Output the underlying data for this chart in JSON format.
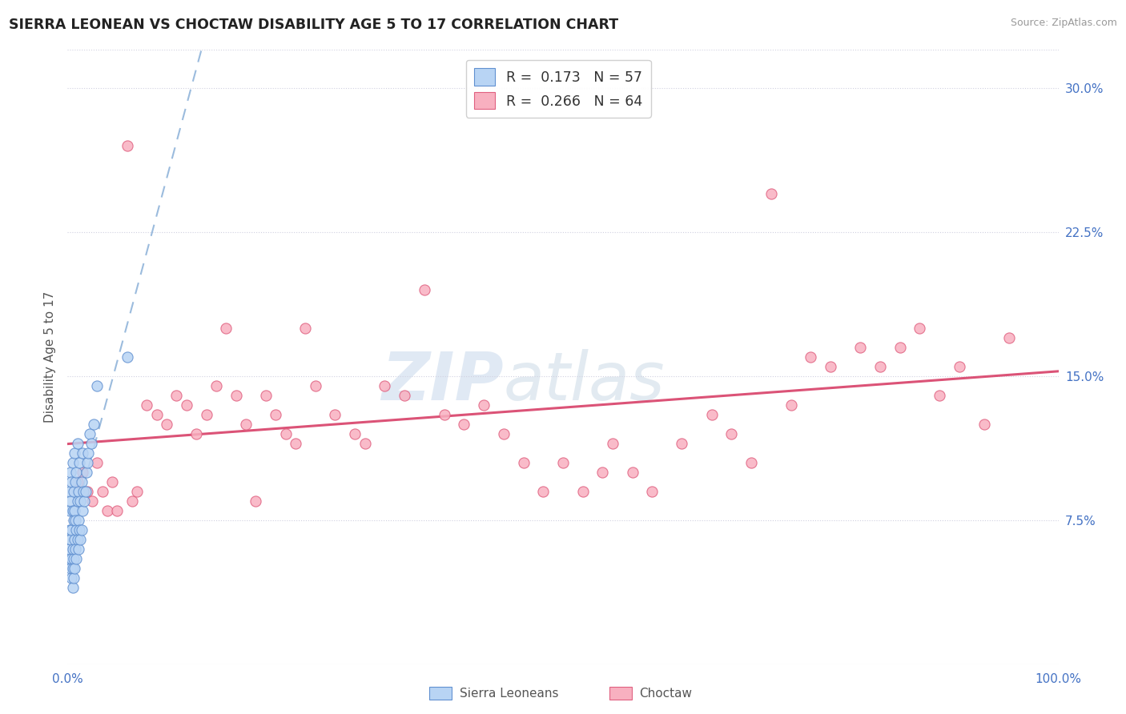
{
  "title": "SIERRA LEONEAN VS CHOCTAW DISABILITY AGE 5 TO 17 CORRELATION CHART",
  "source": "Source: ZipAtlas.com",
  "ylabel": "Disability Age 5 to 17",
  "xlim": [
    0,
    100
  ],
  "ylim": [
    0,
    32
  ],
  "yticks": [
    7.5,
    15.0,
    22.5,
    30.0
  ],
  "yticklabels": [
    "7.5%",
    "15.0%",
    "22.5%",
    "30.0%"
  ],
  "legend1_R": "0.173",
  "legend1_N": "57",
  "legend2_R": "0.266",
  "legend2_N": "64",
  "sl_fill": "#b8d4f4",
  "sl_edge": "#6090d0",
  "ch_fill": "#f8b0c0",
  "ch_edge": "#e06080",
  "sl_trend_color": "#8ab0d8",
  "ch_trend_color": "#d84068",
  "background_color": "#ffffff",
  "grid_color": "#d0d0e0",
  "watermark": "ZIPatlas",
  "sierra_leonean_x": [
    0.1,
    0.1,
    0.2,
    0.2,
    0.2,
    0.3,
    0.3,
    0.3,
    0.3,
    0.4,
    0.4,
    0.4,
    0.4,
    0.5,
    0.5,
    0.5,
    0.5,
    0.5,
    0.6,
    0.6,
    0.6,
    0.6,
    0.7,
    0.7,
    0.7,
    0.7,
    0.8,
    0.8,
    0.8,
    0.9,
    0.9,
    0.9,
    1.0,
    1.0,
    1.0,
    1.1,
    1.1,
    1.1,
    1.2,
    1.2,
    1.3,
    1.3,
    1.4,
    1.4,
    1.5,
    1.5,
    1.6,
    1.7,
    1.8,
    1.9,
    2.0,
    2.1,
    2.2,
    2.4,
    2.6,
    3.0,
    6.0
  ],
  "sierra_leonean_y": [
    5.5,
    6.0,
    7.0,
    8.0,
    9.0,
    5.0,
    6.5,
    8.5,
    10.0,
    4.5,
    5.5,
    7.0,
    9.5,
    4.0,
    5.0,
    6.0,
    8.0,
    10.5,
    4.5,
    5.5,
    7.5,
    9.0,
    5.0,
    6.5,
    8.0,
    11.0,
    6.0,
    7.5,
    9.5,
    5.5,
    7.0,
    10.0,
    6.5,
    8.5,
    11.5,
    6.0,
    7.5,
    9.0,
    7.0,
    10.5,
    6.5,
    8.5,
    7.0,
    9.5,
    8.0,
    11.0,
    9.0,
    8.5,
    9.0,
    10.0,
    10.5,
    11.0,
    12.0,
    11.5,
    12.5,
    14.5,
    16.0
  ],
  "choctaw_x": [
    1.0,
    1.5,
    2.0,
    2.5,
    3.0,
    3.5,
    4.0,
    4.5,
    5.0,
    6.0,
    6.5,
    7.0,
    8.0,
    9.0,
    10.0,
    11.0,
    12.0,
    13.0,
    14.0,
    15.0,
    16.0,
    17.0,
    18.0,
    19.0,
    20.0,
    21.0,
    22.0,
    23.0,
    24.0,
    25.0,
    27.0,
    29.0,
    30.0,
    32.0,
    34.0,
    36.0,
    38.0,
    40.0,
    42.0,
    44.0,
    46.0,
    48.0,
    50.0,
    52.0,
    54.0,
    55.0,
    57.0,
    59.0,
    62.0,
    65.0,
    67.0,
    69.0,
    71.0,
    73.0,
    75.0,
    77.0,
    80.0,
    82.0,
    84.0,
    86.0,
    88.0,
    90.0,
    92.5,
    95.0
  ],
  "choctaw_y": [
    9.5,
    10.0,
    9.0,
    8.5,
    10.5,
    9.0,
    8.0,
    9.5,
    8.0,
    27.0,
    8.5,
    9.0,
    13.5,
    13.0,
    12.5,
    14.0,
    13.5,
    12.0,
    13.0,
    14.5,
    17.5,
    14.0,
    12.5,
    8.5,
    14.0,
    13.0,
    12.0,
    11.5,
    17.5,
    14.5,
    13.0,
    12.0,
    11.5,
    14.5,
    14.0,
    19.5,
    13.0,
    12.5,
    13.5,
    12.0,
    10.5,
    9.0,
    10.5,
    9.0,
    10.0,
    11.5,
    10.0,
    9.0,
    11.5,
    13.0,
    12.0,
    10.5,
    24.5,
    13.5,
    16.0,
    15.5,
    16.5,
    15.5,
    16.5,
    17.5,
    14.0,
    15.5,
    12.5,
    17.0
  ]
}
